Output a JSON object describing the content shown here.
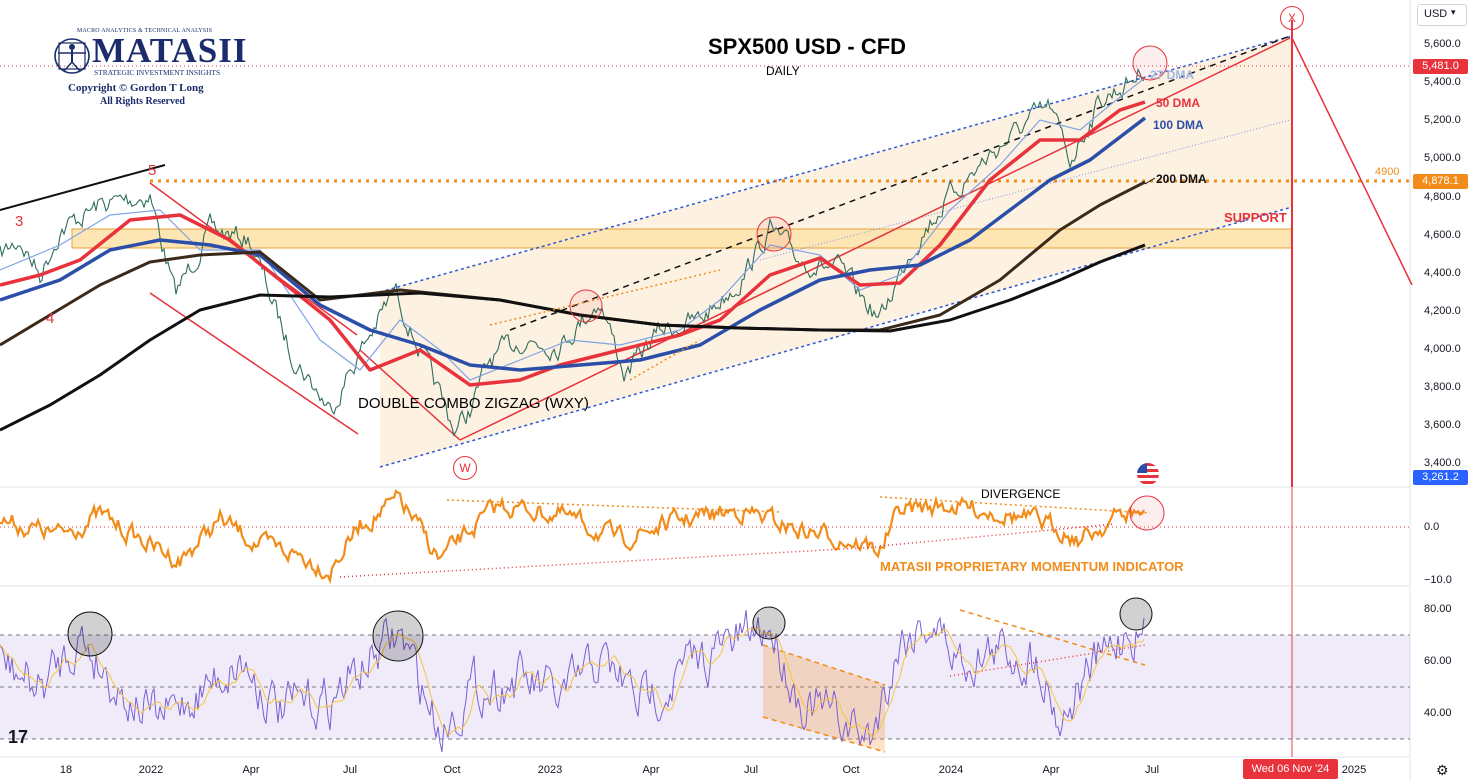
{
  "header": {
    "currency_button": "USD",
    "chart_title": "SPX500 USD - CFD",
    "timeframe": "DAILY"
  },
  "logo": {
    "tagline_top": "MACRO ANALYTICS & TECHNICAL ANALYSIS",
    "name": "MATASII",
    "tagline_bottom": "STRATEGIC INVESTMENT INSIGHTS",
    "copyright": "Copyright © Gordon T Long",
    "rights": "All Rights Reserved"
  },
  "annotations": {
    "dma_27": "27 DMA",
    "dma_50": "50 DMA",
    "dma_100": "100 DMA",
    "dma_200": "200 DMA",
    "support": "SUPPORT",
    "level_4900": "4900",
    "pattern": "DOUBLE COMBO ZIGZAG (WXY)",
    "wave_w": "W",
    "wave_x": "X",
    "wave_3": "3",
    "wave_4": "4",
    "wave_5": "5",
    "divergence": "DIVERGENCE",
    "momentum_title": "MATASII PROPRIETARY MOMENTUM INDICATOR"
  },
  "price_axis": {
    "ticks": [
      "5,600.0",
      "5,400.0",
      "5,200.0",
      "5,000.0",
      "4,800.0",
      "4,600.0",
      "4,400.0",
      "4,200.0",
      "4,000.0",
      "3,800.0",
      "3,600.0",
      "3,400.0"
    ],
    "last_price": "5,481.0",
    "level_tag": "4,878.1",
    "low_tag": "3,261.2"
  },
  "momentum_axis": {
    "ticks": [
      "0.0",
      "−10.0"
    ]
  },
  "rsi_axis": {
    "ticks": [
      "80.00",
      "60.00",
      "40.00"
    ]
  },
  "time_axis": {
    "labels": [
      "18",
      "2022",
      "Apr",
      "Jul",
      "Oct",
      "2023",
      "Apr",
      "Jul",
      "Oct",
      "2024",
      "Apr",
      "Jul",
      "2025"
    ],
    "cursor_date": "Wed 06 Nov '24"
  },
  "colors": {
    "red": "#e8323c",
    "blue_ma": "#2b4fa8",
    "orange": "#f28c1a",
    "black_ma": "#111111",
    "purple_rsi": "#7b5fd6",
    "channel_fill": "#fdf0de",
    "support_fill": "#fde6b3",
    "blue_tag": "#2962ff"
  },
  "chart_data": [
    {
      "type": "line",
      "name": "price",
      "title": "SPX500 USD - CFD",
      "subtitle": "DAILY",
      "x": [
        "2021-11",
        "2022-01",
        "2022-03",
        "2022-06",
        "2022-08",
        "2022-10",
        "2023-01",
        "2023-03",
        "2023-07",
        "2023-10",
        "2024-01",
        "2024-04",
        "2024-06"
      ],
      "values": [
        4600,
        4800,
        4300,
        3660,
        4300,
        3500,
        3900,
        3850,
        4600,
        4110,
        4700,
        5250,
        5490
      ],
      "ylim": [
        3300,
        5700
      ],
      "levels": {
        "resistance_4900": 4878.1,
        "support_zone": [
          4530,
          4630
        ]
      }
    },
    {
      "type": "line",
      "name": "MATASII PROPRIETARY MOMENTUM INDICATOR",
      "ylim": [
        -10,
        5
      ],
      "levels": [
        0
      ]
    },
    {
      "type": "line",
      "name": "RSI",
      "ylim": [
        25,
        85
      ],
      "levels": [
        70,
        50,
        30
      ]
    }
  ]
}
